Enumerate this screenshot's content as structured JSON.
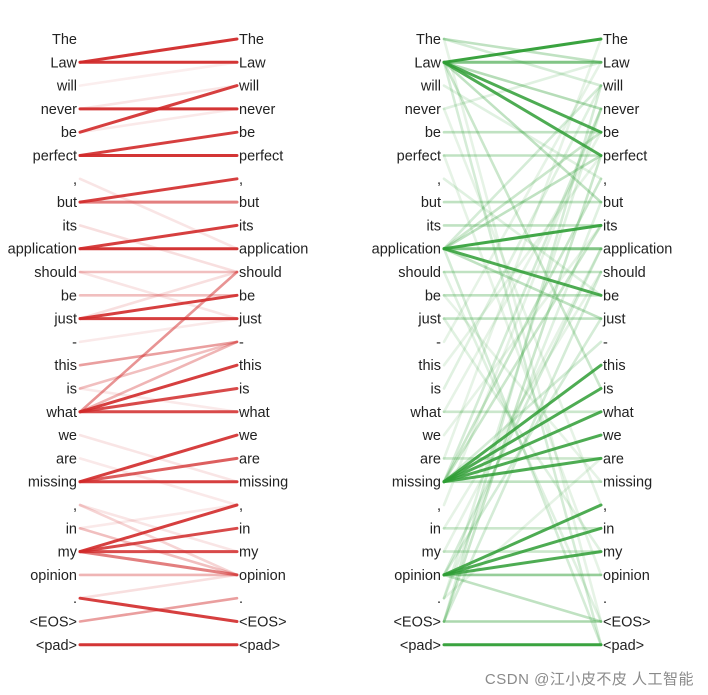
{
  "tokens": [
    "The",
    "Law",
    "will",
    "never",
    "be",
    "perfect",
    ",",
    "but",
    "its",
    "application",
    "should",
    "be",
    "just",
    "-",
    "this",
    "is",
    "what",
    "we",
    "are",
    "missing",
    ",",
    "in",
    "my",
    "opinion",
    ".",
    "<EOS>",
    "<pad>"
  ],
  "colors": {
    "red": "#d12a2a",
    "green": "#2f9e35",
    "text": "#222222"
  },
  "red_links": [
    [
      1,
      0,
      0.95
    ],
    [
      1,
      1,
      0.95
    ],
    [
      3,
      3,
      0.95
    ],
    [
      4,
      2,
      0.9
    ],
    [
      5,
      5,
      0.95
    ],
    [
      5,
      4,
      0.9
    ],
    [
      7,
      6,
      0.9
    ],
    [
      7,
      7,
      0.6
    ],
    [
      9,
      8,
      0.9
    ],
    [
      9,
      9,
      0.95
    ],
    [
      10,
      10,
      0.3
    ],
    [
      11,
      11,
      0.3
    ],
    [
      12,
      12,
      0.9
    ],
    [
      12,
      11,
      0.9
    ],
    [
      14,
      13,
      0.45
    ],
    [
      15,
      13,
      0.3
    ],
    [
      16,
      14,
      0.9
    ],
    [
      16,
      15,
      0.85
    ],
    [
      16,
      16,
      0.85
    ],
    [
      16,
      10,
      0.5
    ],
    [
      16,
      13,
      0.35
    ],
    [
      19,
      17,
      0.9
    ],
    [
      19,
      19,
      0.9
    ],
    [
      19,
      18,
      0.75
    ],
    [
      22,
      20,
      0.9
    ],
    [
      22,
      21,
      0.85
    ],
    [
      22,
      22,
      0.85
    ],
    [
      22,
      23,
      0.6
    ],
    [
      21,
      23,
      0.3
    ],
    [
      20,
      23,
      0.2
    ],
    [
      23,
      23,
      0.35
    ],
    [
      24,
      25,
      0.9
    ],
    [
      25,
      24,
      0.45
    ],
    [
      26,
      26,
      0.95
    ],
    [
      8,
      10,
      0.15
    ],
    [
      6,
      9,
      0.12
    ],
    [
      3,
      2,
      0.12
    ],
    [
      4,
      3,
      0.1
    ],
    [
      10,
      12,
      0.12
    ],
    [
      12,
      10,
      0.15
    ],
    [
      17,
      19,
      0.12
    ],
    [
      18,
      20,
      0.1
    ],
    [
      20,
      22,
      0.12
    ],
    [
      24,
      23,
      0.15
    ],
    [
      13,
      12,
      0.1
    ],
    [
      15,
      16,
      0.1
    ],
    [
      21,
      20,
      0.1
    ],
    [
      2,
      1,
      0.08
    ]
  ],
  "green_links": [
    [
      1,
      0,
      0.95
    ],
    [
      1,
      1,
      0.6
    ],
    [
      1,
      4,
      0.85
    ],
    [
      1,
      5,
      0.85
    ],
    [
      1,
      3,
      0.35
    ],
    [
      1,
      7,
      0.3
    ],
    [
      1,
      15,
      0.25
    ],
    [
      1,
      26,
      0.2
    ],
    [
      0,
      1,
      0.3
    ],
    [
      0,
      2,
      0.2
    ],
    [
      9,
      8,
      0.9
    ],
    [
      9,
      9,
      0.6
    ],
    [
      9,
      11,
      0.85
    ],
    [
      9,
      12,
      0.3
    ],
    [
      9,
      5,
      0.3
    ],
    [
      9,
      4,
      0.25
    ],
    [
      9,
      2,
      0.2
    ],
    [
      9,
      26,
      0.2
    ],
    [
      19,
      13,
      0.2
    ],
    [
      19,
      14,
      0.85
    ],
    [
      19,
      15,
      0.85
    ],
    [
      19,
      16,
      0.85
    ],
    [
      19,
      17,
      0.85
    ],
    [
      19,
      18,
      0.85
    ],
    [
      19,
      19,
      0.3
    ],
    [
      19,
      6,
      0.25
    ],
    [
      19,
      8,
      0.25
    ],
    [
      19,
      3,
      0.2
    ],
    [
      23,
      20,
      0.85
    ],
    [
      23,
      21,
      0.85
    ],
    [
      23,
      22,
      0.85
    ],
    [
      23,
      23,
      0.5
    ],
    [
      23,
      25,
      0.3
    ],
    [
      23,
      9,
      0.2
    ],
    [
      23,
      12,
      0.2
    ],
    [
      26,
      26,
      0.95
    ],
    [
      25,
      25,
      0.4
    ],
    [
      25,
      5,
      0.25
    ],
    [
      25,
      2,
      0.2
    ],
    [
      25,
      10,
      0.2
    ],
    [
      24,
      3,
      0.15
    ],
    [
      24,
      7,
      0.15
    ],
    [
      4,
      4,
      0.3
    ],
    [
      5,
      5,
      0.3
    ],
    [
      7,
      7,
      0.3
    ],
    [
      8,
      8,
      0.3
    ],
    [
      10,
      10,
      0.3
    ],
    [
      11,
      11,
      0.3
    ],
    [
      12,
      12,
      0.3
    ],
    [
      16,
      16,
      0.25
    ],
    [
      18,
      18,
      0.25
    ],
    [
      21,
      21,
      0.25
    ],
    [
      22,
      22,
      0.25
    ],
    [
      2,
      6,
      0.15
    ],
    [
      3,
      1,
      0.15
    ],
    [
      6,
      11,
      0.15
    ],
    [
      10,
      25,
      0.15
    ],
    [
      12,
      22,
      0.15
    ],
    [
      13,
      1,
      0.12
    ],
    [
      14,
      5,
      0.12
    ],
    [
      15,
      2,
      0.15
    ],
    [
      17,
      8,
      0.12
    ],
    [
      20,
      3,
      0.12
    ],
    [
      21,
      10,
      0.12
    ],
    [
      22,
      9,
      0.12
    ],
    [
      24,
      18,
      0.12
    ],
    [
      0,
      25,
      0.12
    ],
    [
      3,
      20,
      0.12
    ],
    [
      5,
      23,
      0.12
    ],
    [
      11,
      19,
      0.12
    ],
    [
      16,
      4,
      0.12
    ],
    [
      18,
      0,
      0.12
    ]
  ],
  "watermark": "CSDN @江小皮不皮 人工智能"
}
